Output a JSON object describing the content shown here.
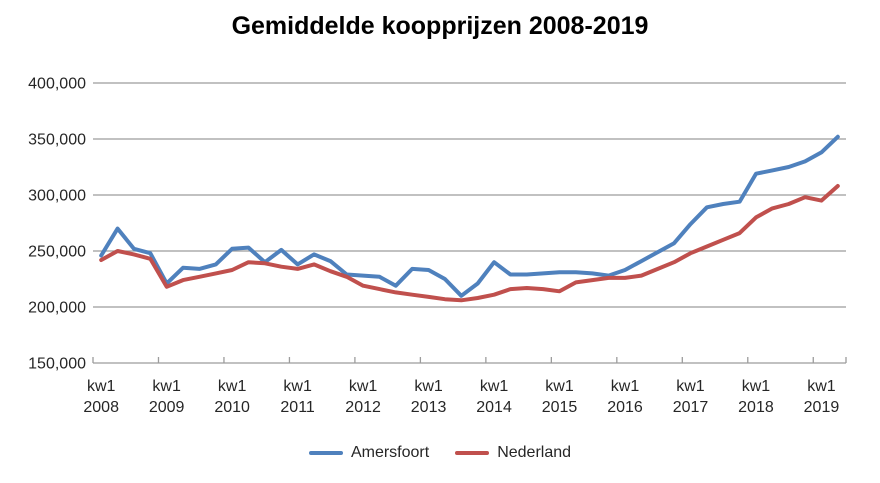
{
  "chart_data": {
    "type": "line",
    "title": "Gemiddelde koopprijzen 2008-2019",
    "categories": [
      "kw1 2008",
      "kw2 2008",
      "kw3 2008",
      "kw4 2008",
      "kw1 2009",
      "kw2 2009",
      "kw3 2009",
      "kw4 2009",
      "kw1 2010",
      "kw2 2010",
      "kw3 2010",
      "kw4 2010",
      "kw1 2011",
      "kw2 2011",
      "kw3 2011",
      "kw4 2011",
      "kw1 2012",
      "kw2 2012",
      "kw3 2012",
      "kw4 2012",
      "kw1 2013",
      "kw2 2013",
      "kw3 2013",
      "kw4 2013",
      "kw1 2014",
      "kw2 2014",
      "kw3 2014",
      "kw4 2014",
      "kw1 2015",
      "kw2 2015",
      "kw3 2015",
      "kw4 2015",
      "kw1 2016",
      "kw2 2016",
      "kw3 2016",
      "kw4 2016",
      "kw1 2017",
      "kw2 2017",
      "kw3 2017",
      "kw4 2017",
      "kw1 2018",
      "kw2 2018",
      "kw3 2018",
      "kw4 2018",
      "kw1 2019",
      "kw2 2019"
    ],
    "series": [
      {
        "name": "Amersfoort",
        "color": "#4F81BD",
        "values": [
          246000,
          270000,
          252000,
          248000,
          221000,
          235000,
          234000,
          238000,
          252000,
          253000,
          240000,
          251000,
          238000,
          247000,
          241000,
          229000,
          228000,
          227000,
          219000,
          234000,
          233000,
          225000,
          210000,
          221000,
          240000,
          229000,
          229000,
          230000,
          231000,
          231000,
          230000,
          228000,
          233000,
          241000,
          249000,
          257000,
          274000,
          289000,
          292000,
          294000,
          319000,
          322000,
          325000,
          330000,
          338000,
          352000
        ]
      },
      {
        "name": "Nederland",
        "color": "#C0504D",
        "values": [
          242000,
          250000,
          247000,
          243000,
          218000,
          224000,
          227000,
          230000,
          233000,
          240000,
          239000,
          236000,
          234000,
          238000,
          232000,
          227000,
          219000,
          216000,
          213000,
          211000,
          209000,
          207000,
          206000,
          208000,
          211000,
          216000,
          217000,
          216000,
          214000,
          222000,
          224000,
          226000,
          226000,
          228000,
          234000,
          240000,
          248000,
          254000,
          260000,
          266000,
          280000,
          288000,
          292000,
          298000,
          295000,
          308000
        ]
      }
    ],
    "y_axis": {
      "min": 150000,
      "max": 400000,
      "step": 50000,
      "tick_labels": [
        "150,000",
        "200,000",
        "250,000",
        "300,000",
        "350,000",
        "400,000"
      ]
    },
    "x_axis": {
      "quarter_label": "kw1",
      "tick_years": [
        "2008",
        "2009",
        "2010",
        "2011",
        "2012",
        "2013",
        "2014",
        "2015",
        "2016",
        "2017",
        "2018",
        "2019"
      ]
    },
    "grid": true,
    "legend_position": "bottom",
    "ylim": [
      150000,
      400000
    ]
  },
  "colors": {
    "gridline": "#9C9C9C",
    "axis_text": "#262626",
    "title_text": "#000000",
    "background": "#FFFFFF"
  }
}
